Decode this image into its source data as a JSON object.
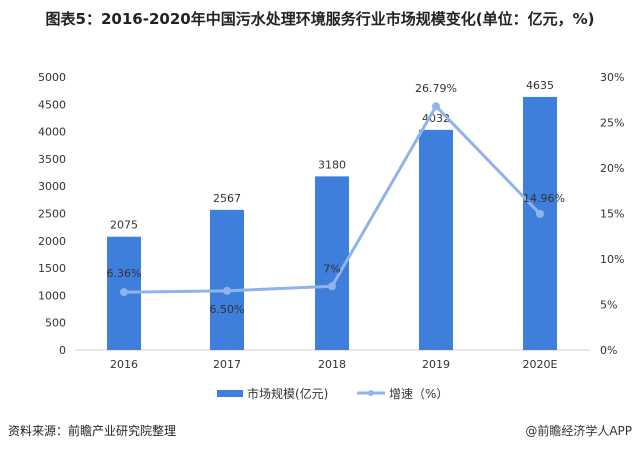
{
  "title": "图表5：2016-2020年中国污水处理环境服务行业市场规模变化(单位：亿元，%)",
  "source": "资料来源：前瞻产业研究院整理",
  "credit": "@前瞻经济学人APP",
  "chart_data": {
    "type": "bar+line",
    "categories": [
      "2016",
      "2017",
      "2018",
      "2019",
      "2020E"
    ],
    "series": [
      {
        "name": "市场规模(亿元)",
        "type": "bar",
        "axis": "left",
        "color": "#3f7fdc",
        "values": [
          2075,
          2567,
          3180,
          4032,
          4635
        ],
        "labels": [
          "2075",
          "2567",
          "3180",
          "4032",
          "4635"
        ]
      },
      {
        "name": "增速（%）",
        "type": "line",
        "axis": "right",
        "color": "#8fb4ec",
        "values": [
          6.36,
          6.5,
          7,
          26.79,
          14.96
        ],
        "labels": [
          "6.36%",
          "6.50%",
          "7%",
          "26.79%",
          "14.96%"
        ]
      }
    ],
    "left_axis": {
      "ylim": [
        0,
        5000
      ],
      "ticks": [
        "0",
        "500",
        "1000",
        "1500",
        "2000",
        "2500",
        "3000",
        "3500",
        "4000",
        "4500",
        "5000"
      ]
    },
    "right_axis": {
      "ylim": [
        0,
        30
      ],
      "ticks": [
        "0%",
        "5%",
        "10%",
        "15%",
        "20%",
        "25%",
        "30%"
      ]
    },
    "grid": false,
    "legend": "bottom"
  }
}
